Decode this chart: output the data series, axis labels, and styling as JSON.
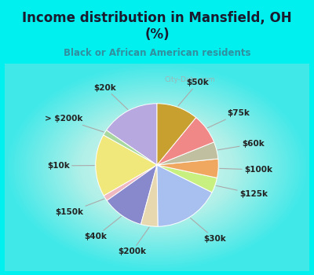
{
  "title": "Income distribution in Mansfield, OH\n(%)",
  "subtitle": "Black or African American residents",
  "labels": [
    "$20k",
    "> $200k",
    "$10k",
    "$150k",
    "$40k",
    "$200k",
    "$30k",
    "$125k",
    "$100k",
    "$60k",
    "$75k",
    "$50k"
  ],
  "values": [
    15.5,
    1.5,
    16.5,
    1.5,
    11.0,
    4.5,
    17.5,
    4.0,
    5.0,
    4.5,
    8.0,
    11.0
  ],
  "colors": [
    "#b8a8e0",
    "#a8d8a0",
    "#f0e87a",
    "#f0b8c0",
    "#8888cc",
    "#e8d8b0",
    "#a8c0f0",
    "#c8f080",
    "#f0a860",
    "#c0c0a0",
    "#f08888",
    "#c8a030"
  ],
  "bg_cyan": "#00f0f0",
  "bg_chart_center": "#e8f8e8",
  "title_color": "#1a1a2e",
  "subtitle_color": "#3090a0",
  "watermark": "City-Data.com",
  "label_fontsize": 7.5,
  "title_fontsize": 12
}
